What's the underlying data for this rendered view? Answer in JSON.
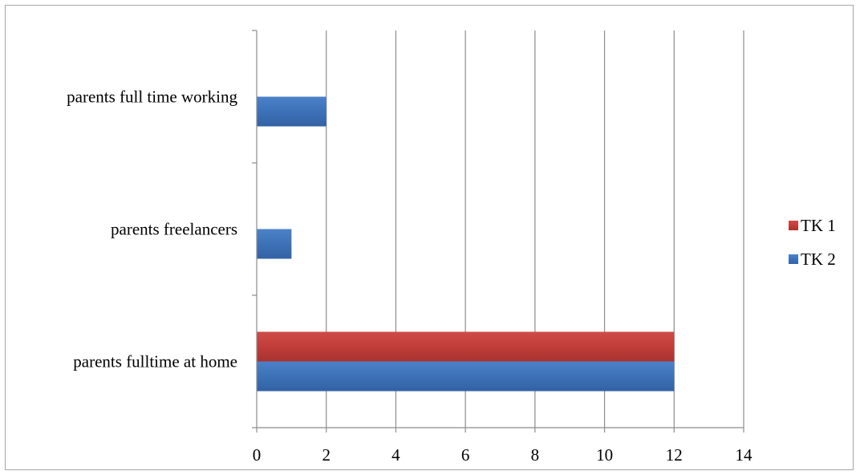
{
  "chart_data": {
    "type": "bar",
    "orientation": "horizontal",
    "categories": [
      "parents fulltime at home",
      "parents freelancers",
      "parents full time working"
    ],
    "series": [
      {
        "name": "TK 1",
        "values": [
          12,
          0,
          0
        ],
        "color": "#be3a36"
      },
      {
        "name": "TK 2",
        "values": [
          12,
          1,
          2
        ],
        "color": "#3f72b8"
      }
    ],
    "xlim": [
      0,
      14
    ],
    "xticks": [
      0,
      2,
      4,
      6,
      8,
      10,
      12,
      14
    ],
    "grid": true,
    "legend_position": "right",
    "title": "",
    "xlabel": "",
    "ylabel": ""
  }
}
